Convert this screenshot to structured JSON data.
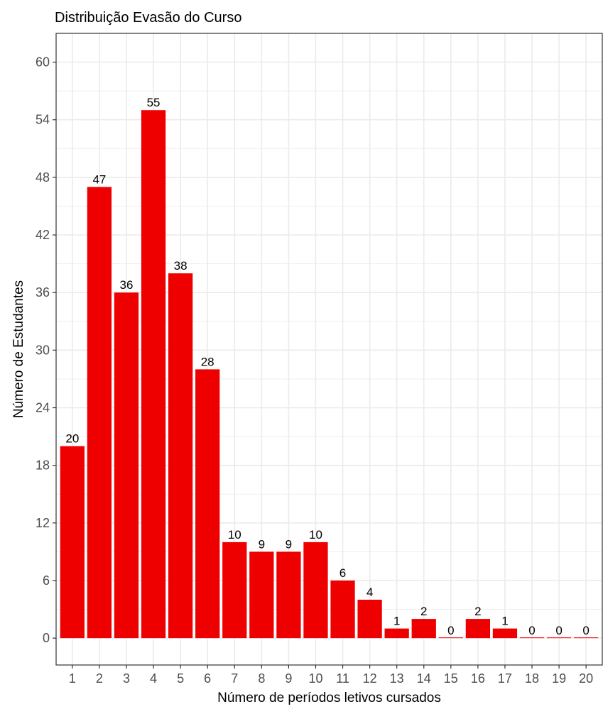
{
  "chart_data": {
    "type": "bar",
    "title": "Distribuição Evasão do Curso",
    "xlabel": "Número de períodos letivos cursados",
    "ylabel": "Número de Estudantes",
    "categories": [
      "1",
      "2",
      "3",
      "4",
      "5",
      "6",
      "7",
      "8",
      "9",
      "10",
      "11",
      "12",
      "13",
      "14",
      "15",
      "16",
      "17",
      "18",
      "19",
      "20"
    ],
    "values": [
      20,
      47,
      36,
      55,
      38,
      28,
      10,
      9,
      9,
      10,
      6,
      4,
      1,
      2,
      0,
      2,
      1,
      0,
      0,
      0
    ],
    "yticks": [
      0,
      6,
      12,
      18,
      24,
      30,
      36,
      42,
      48,
      54,
      60
    ],
    "ylim": [
      -2.8,
      63
    ],
    "grid": true,
    "data_labels": true,
    "bar_color": "#ee0000",
    "panel_border_color": "#333333",
    "grid_color": "#ebebeb"
  }
}
